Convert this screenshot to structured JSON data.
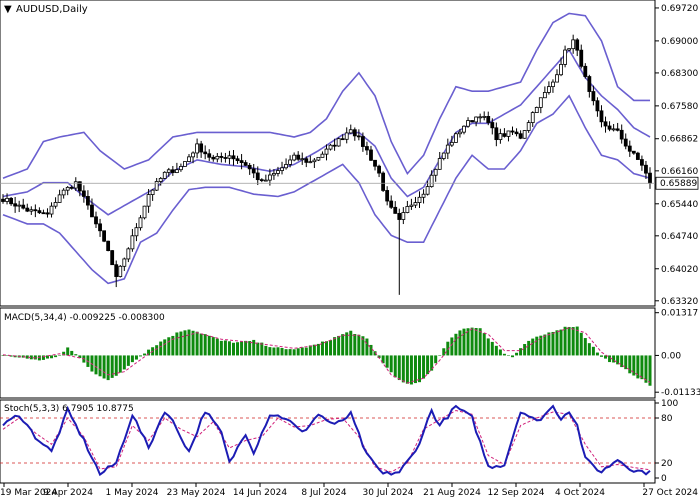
{
  "chart_data": [
    {
      "type": "candlestick",
      "symbol": "AUDUSD",
      "timeframe": "Daily",
      "title": "AUDUSD,Daily",
      "last_price": "0.65889",
      "y_ticks": [
        "0.69720",
        "0.69000",
        "0.68300",
        "0.67580",
        "0.66862",
        "0.66160",
        "0.65440",
        "0.64740",
        "0.64020",
        "0.63320"
      ],
      "ylim": [
        0.6325,
        0.6985
      ],
      "x_ticks": [
        "19 Mar 2024",
        "9 Apr 2024",
        "1 May 2024",
        "23 May 2024",
        "14 Jun 2024",
        "8 Jul 2024",
        "30 Jul 2024",
        "21 Aug 2024",
        "12 Sep 2024",
        "4 Oct 2024",
        "27 Oct 2024"
      ],
      "close_anchors": [
        [
          0,
          0.6555
        ],
        [
          6,
          0.653
        ],
        [
          11,
          0.652
        ],
        [
          14,
          0.6565
        ],
        [
          18,
          0.659
        ],
        [
          22,
          0.652
        ],
        [
          26,
          0.644
        ],
        [
          28,
          0.638
        ],
        [
          32,
          0.647
        ],
        [
          36,
          0.6565
        ],
        [
          40,
          0.661
        ],
        [
          44,
          0.6625
        ],
        [
          48,
          0.667
        ],
        [
          52,
          0.664
        ],
        [
          56,
          0.665
        ],
        [
          60,
          0.663
        ],
        [
          64,
          0.659
        ],
        [
          68,
          0.6615
        ],
        [
          72,
          0.6645
        ],
        [
          76,
          0.6635
        ],
        [
          80,
          0.666
        ],
        [
          84,
          0.669
        ],
        [
          86,
          0.671
        ],
        [
          90,
          0.666
        ],
        [
          93,
          0.661
        ],
        [
          95,
          0.6545
        ],
        [
          98,
          0.6505
        ],
        [
          100,
          0.6535
        ],
        [
          104,
          0.657
        ],
        [
          108,
          0.664
        ],
        [
          110,
          0.667
        ],
        [
          114,
          0.6715
        ],
        [
          118,
          0.674
        ],
        [
          120,
          0.672
        ],
        [
          122,
          0.669
        ],
        [
          126,
          0.67
        ],
        [
          128,
          0.669
        ],
        [
          132,
          0.676
        ],
        [
          136,
          0.681
        ],
        [
          139,
          0.6875
        ],
        [
          141,
          0.69
        ],
        [
          143,
          0.685
        ],
        [
          145,
          0.6785
        ],
        [
          148,
          0.672
        ],
        [
          152,
          0.67
        ],
        [
          155,
          0.666
        ],
        [
          158,
          0.663
        ],
        [
          160,
          0.6589
        ]
      ],
      "bollinger_bands": {
        "upper": [
          [
            0,
            0.66
          ],
          [
            6,
            0.662
          ],
          [
            10,
            0.668
          ],
          [
            14,
            0.669
          ],
          [
            20,
            0.67
          ],
          [
            24,
            0.666
          ],
          [
            30,
            0.662
          ],
          [
            36,
            0.664
          ],
          [
            42,
            0.669
          ],
          [
            48,
            0.67
          ],
          [
            54,
            0.67
          ],
          [
            60,
            0.67
          ],
          [
            66,
            0.67
          ],
          [
            72,
            0.669
          ],
          [
            76,
            0.67
          ],
          [
            80,
            0.673
          ],
          [
            84,
            0.679
          ],
          [
            88,
            0.683
          ],
          [
            92,
            0.678
          ],
          [
            96,
            0.668
          ],
          [
            100,
            0.661
          ],
          [
            104,
            0.665
          ],
          [
            108,
            0.673
          ],
          [
            112,
            0.68
          ],
          [
            116,
            0.679
          ],
          [
            120,
            0.679
          ],
          [
            124,
            0.68
          ],
          [
            128,
            0.681
          ],
          [
            132,
            0.688
          ],
          [
            136,
            0.694
          ],
          [
            140,
            0.696
          ],
          [
            144,
            0.6955
          ],
          [
            148,
            0.69
          ],
          [
            152,
            0.68
          ],
          [
            156,
            0.677
          ],
          [
            160,
            0.677
          ]
        ],
        "middle": [
          [
            0,
            0.656
          ],
          [
            6,
            0.657
          ],
          [
            10,
            0.659
          ],
          [
            16,
            0.659
          ],
          [
            20,
            0.656
          ],
          [
            26,
            0.652
          ],
          [
            32,
            0.655
          ],
          [
            38,
            0.658
          ],
          [
            42,
            0.6615
          ],
          [
            48,
            0.664
          ],
          [
            54,
            0.663
          ],
          [
            60,
            0.6625
          ],
          [
            66,
            0.6615
          ],
          [
            72,
            0.663
          ],
          [
            78,
            0.666
          ],
          [
            84,
            0.6695
          ],
          [
            88,
            0.67
          ],
          [
            92,
            0.667
          ],
          [
            96,
            0.66
          ],
          [
            100,
            0.656
          ],
          [
            104,
            0.658
          ],
          [
            108,
            0.664
          ],
          [
            112,
            0.67
          ],
          [
            116,
            0.672
          ],
          [
            120,
            0.672
          ],
          [
            124,
            0.674
          ],
          [
            128,
            0.676
          ],
          [
            132,
            0.68
          ],
          [
            136,
            0.684
          ],
          [
            140,
            0.688
          ],
          [
            144,
            0.682
          ],
          [
            148,
            0.678
          ],
          [
            152,
            0.675
          ],
          [
            156,
            0.671
          ],
          [
            160,
            0.669
          ]
        ],
        "lower": [
          [
            0,
            0.652
          ],
          [
            6,
            0.65
          ],
          [
            10,
            0.65
          ],
          [
            14,
            0.648
          ],
          [
            18,
            0.644
          ],
          [
            22,
            0.64
          ],
          [
            26,
            0.637
          ],
          [
            30,
            0.638
          ],
          [
            34,
            0.646
          ],
          [
            38,
            0.648
          ],
          [
            42,
            0.653
          ],
          [
            46,
            0.6575
          ],
          [
            50,
            0.658
          ],
          [
            56,
            0.658
          ],
          [
            62,
            0.6565
          ],
          [
            68,
            0.656
          ],
          [
            72,
            0.657
          ],
          [
            78,
            0.66
          ],
          [
            84,
            0.663
          ],
          [
            88,
            0.659
          ],
          [
            92,
            0.652
          ],
          [
            96,
            0.6475
          ],
          [
            100,
            0.646
          ],
          [
            104,
            0.646
          ],
          [
            108,
            0.653
          ],
          [
            112,
            0.66
          ],
          [
            116,
            0.665
          ],
          [
            120,
            0.662
          ],
          [
            124,
            0.662
          ],
          [
            128,
            0.666
          ],
          [
            132,
            0.672
          ],
          [
            136,
            0.674
          ],
          [
            140,
            0.678
          ],
          [
            144,
            0.671
          ],
          [
            148,
            0.665
          ],
          [
            152,
            0.664
          ],
          [
            156,
            0.661
          ],
          [
            160,
            0.66
          ]
        ]
      }
    },
    {
      "type": "histogram",
      "title": "MACD(5,34,4) -0.009225 -0.008300",
      "y_ticks": [
        "0.01317",
        "0.00",
        "-0.01133"
      ],
      "ylim": [
        -0.0125,
        0.014
      ],
      "histogram_anchors": [
        [
          0,
          0.0
        ],
        [
          6,
          -0.001
        ],
        [
          10,
          -0.0015
        ],
        [
          14,
          0.0
        ],
        [
          16,
          0.0022
        ],
        [
          18,
          0.0005
        ],
        [
          22,
          -0.005
        ],
        [
          26,
          -0.0075
        ],
        [
          28,
          -0.0065
        ],
        [
          32,
          -0.002
        ],
        [
          36,
          0.0018
        ],
        [
          40,
          0.005
        ],
        [
          44,
          0.0075
        ],
        [
          46,
          0.0082
        ],
        [
          50,
          0.0065
        ],
        [
          54,
          0.0045
        ],
        [
          58,
          0.004
        ],
        [
          62,
          0.0045
        ],
        [
          66,
          0.0028
        ],
        [
          70,
          0.0018
        ],
        [
          74,
          0.0023
        ],
        [
          78,
          0.0035
        ],
        [
          82,
          0.0055
        ],
        [
          86,
          0.0075
        ],
        [
          90,
          0.005
        ],
        [
          94,
          -0.0025
        ],
        [
          98,
          -0.0078
        ],
        [
          100,
          -0.009
        ],
        [
          103,
          -0.0085
        ],
        [
          106,
          -0.0045
        ],
        [
          108,
          0.0
        ],
        [
          110,
          0.0045
        ],
        [
          114,
          0.0085
        ],
        [
          118,
          0.0085
        ],
        [
          120,
          0.0055
        ],
        [
          124,
          0.0005
        ],
        [
          126,
          -0.0005
        ],
        [
          130,
          0.0045
        ],
        [
          136,
          0.0075
        ],
        [
          140,
          0.009
        ],
        [
          142,
          0.0088
        ],
        [
          144,
          0.0055
        ],
        [
          148,
          -0.0005
        ],
        [
          152,
          -0.003
        ],
        [
          156,
          -0.006
        ],
        [
          160,
          -0.0092
        ]
      ],
      "signal_anchors": [
        [
          0,
          0.0002
        ],
        [
          8,
          -0.0008
        ],
        [
          14,
          0.0005
        ],
        [
          20,
          -0.001
        ],
        [
          26,
          -0.006
        ],
        [
          30,
          -0.005
        ],
        [
          36,
          0.0005
        ],
        [
          42,
          0.005
        ],
        [
          48,
          0.007
        ],
        [
          54,
          0.005
        ],
        [
          60,
          0.0042
        ],
        [
          66,
          0.0032
        ],
        [
          72,
          0.0022
        ],
        [
          78,
          0.0032
        ],
        [
          84,
          0.0062
        ],
        [
          88,
          0.0062
        ],
        [
          92,
          0.001
        ],
        [
          96,
          -0.006
        ],
        [
          100,
          -0.0085
        ],
        [
          104,
          -0.007
        ],
        [
          108,
          -0.0015
        ],
        [
          112,
          0.005
        ],
        [
          116,
          0.0082
        ],
        [
          120,
          0.0065
        ],
        [
          124,
          0.0015
        ],
        [
          128,
          0.0015
        ],
        [
          134,
          0.006
        ],
        [
          140,
          0.0085
        ],
        [
          144,
          0.007
        ],
        [
          148,
          0.001
        ],
        [
          152,
          -0.0022
        ],
        [
          156,
          -0.0052
        ],
        [
          160,
          -0.0083
        ]
      ]
    },
    {
      "type": "line",
      "title": "Stoch(5,3,3) 6.7905 10.8775",
      "y_ticks": [
        "100",
        "80",
        "20",
        "0"
      ],
      "ylim": [
        0,
        100
      ],
      "levels": [
        80,
        20
      ],
      "k_anchors": [
        [
          0,
          70
        ],
        [
          4,
          85
        ],
        [
          8,
          55
        ],
        [
          12,
          35
        ],
        [
          16,
          90
        ],
        [
          20,
          50
        ],
        [
          24,
          5
        ],
        [
          28,
          20
        ],
        [
          32,
          85
        ],
        [
          36,
          40
        ],
        [
          40,
          90
        ],
        [
          42,
          75
        ],
        [
          46,
          35
        ],
        [
          50,
          90
        ],
        [
          54,
          60
        ],
        [
          56,
          20
        ],
        [
          60,
          60
        ],
        [
          62,
          35
        ],
        [
          66,
          85
        ],
        [
          70,
          80
        ],
        [
          74,
          60
        ],
        [
          78,
          85
        ],
        [
          82,
          70
        ],
        [
          86,
          85
        ],
        [
          90,
          30
        ],
        [
          94,
          5
        ],
        [
          98,
          8
        ],
        [
          102,
          35
        ],
        [
          106,
          90
        ],
        [
          108,
          70
        ],
        [
          112,
          95
        ],
        [
          116,
          80
        ],
        [
          120,
          15
        ],
        [
          124,
          18
        ],
        [
          128,
          90
        ],
        [
          132,
          75
        ],
        [
          136,
          95
        ],
        [
          138,
          80
        ],
        [
          140,
          90
        ],
        [
          142,
          70
        ],
        [
          144,
          25
        ],
        [
          148,
          8
        ],
        [
          152,
          25
        ],
        [
          156,
          10
        ],
        [
          160,
          7
        ]
      ],
      "d_anchors": [
        [
          0,
          65
        ],
        [
          4,
          80
        ],
        [
          8,
          60
        ],
        [
          12,
          45
        ],
        [
          16,
          80
        ],
        [
          20,
          55
        ],
        [
          24,
          12
        ],
        [
          28,
          15
        ],
        [
          32,
          70
        ],
        [
          36,
          50
        ],
        [
          40,
          80
        ],
        [
          44,
          65
        ],
        [
          48,
          55
        ],
        [
          52,
          75
        ],
        [
          56,
          40
        ],
        [
          60,
          50
        ],
        [
          64,
          55
        ],
        [
          68,
          80
        ],
        [
          72,
          68
        ],
        [
          76,
          70
        ],
        [
          80,
          78
        ],
        [
          84,
          80
        ],
        [
          88,
          55
        ],
        [
          92,
          15
        ],
        [
          96,
          8
        ],
        [
          100,
          20
        ],
        [
          104,
          65
        ],
        [
          108,
          78
        ],
        [
          112,
          90
        ],
        [
          116,
          85
        ],
        [
          120,
          30
        ],
        [
          124,
          18
        ],
        [
          128,
          70
        ],
        [
          132,
          80
        ],
        [
          136,
          88
        ],
        [
          140,
          85
        ],
        [
          144,
          45
        ],
        [
          148,
          15
        ],
        [
          152,
          18
        ],
        [
          156,
          14
        ],
        [
          160,
          11
        ]
      ]
    }
  ]
}
